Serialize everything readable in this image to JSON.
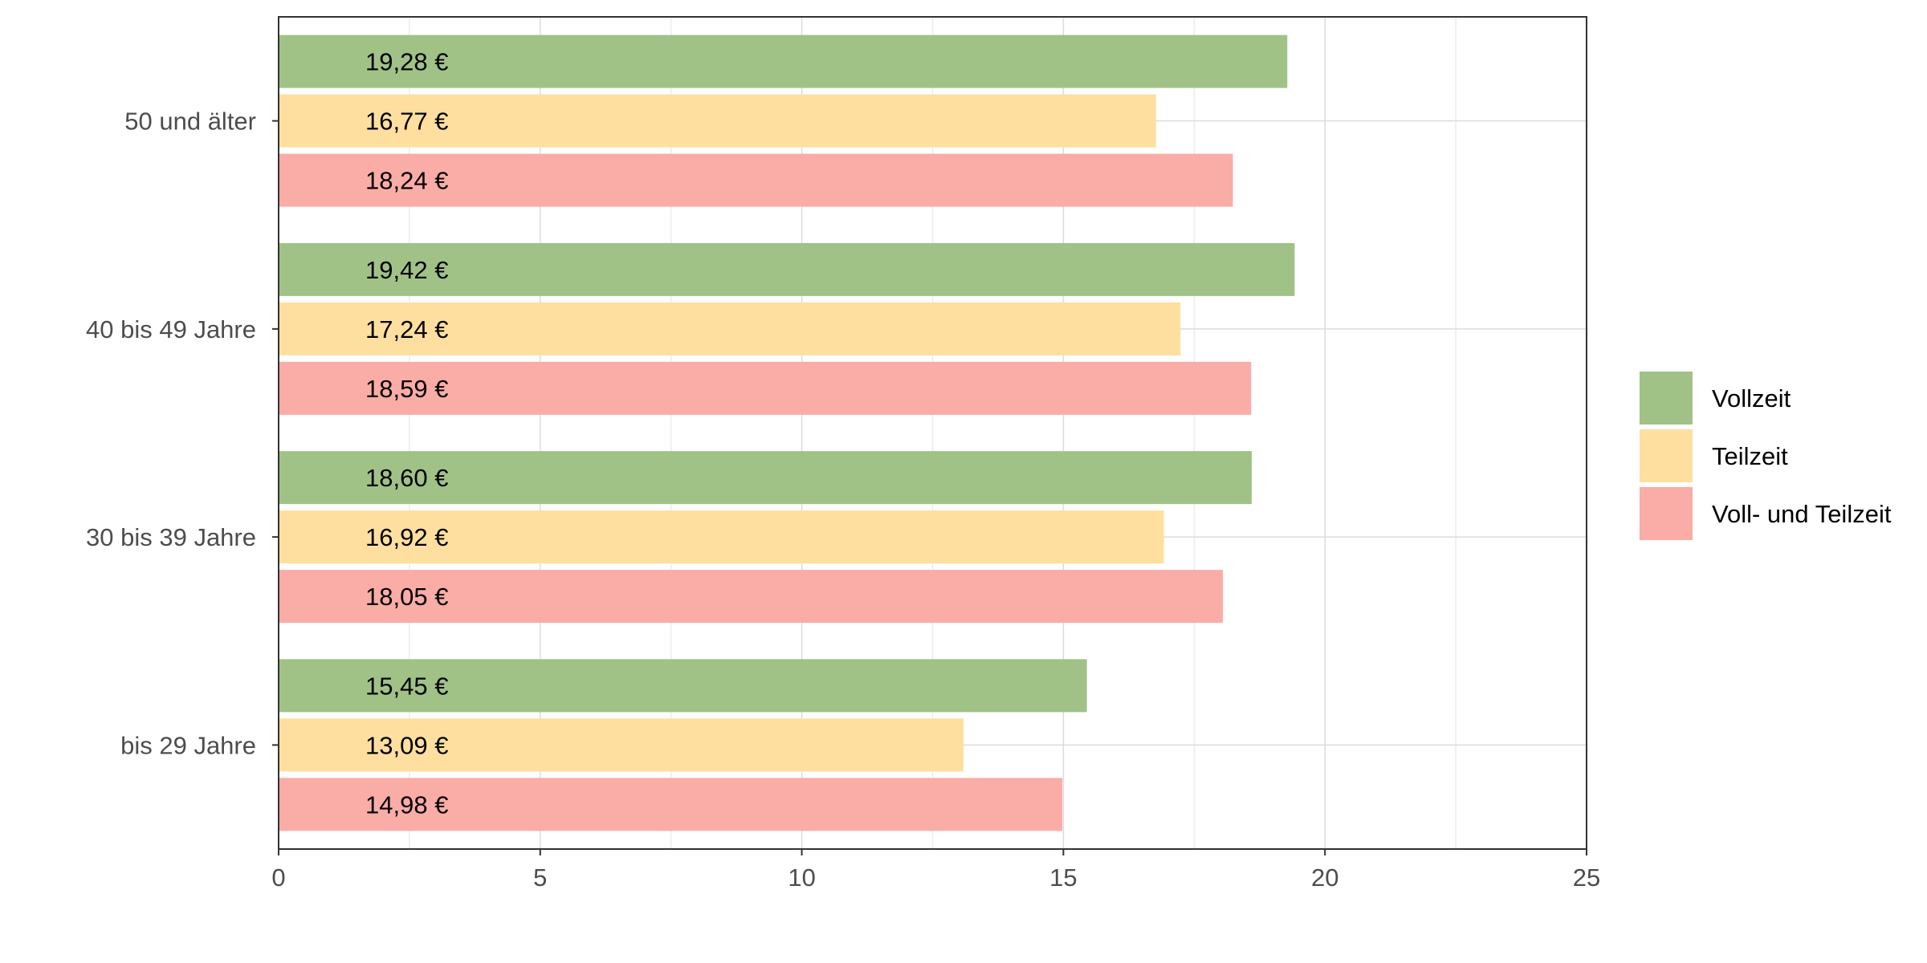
{
  "chart_data": {
    "type": "bar",
    "orientation": "horizontal",
    "categories": [
      "50 und älter",
      "40 bis 49 Jahre",
      "30 bis 39 Jahre",
      "bis 29 Jahre"
    ],
    "series": [
      {
        "name": "Vollzeit",
        "color": "#a1c287",
        "values": [
          19.28,
          19.42,
          18.6,
          15.45
        ],
        "labels": [
          "19,28 €",
          "19,42 €",
          "18,60 €",
          "15,45 €"
        ]
      },
      {
        "name": "Teilzeit",
        "color": "#fedf9f",
        "values": [
          16.77,
          17.24,
          16.92,
          13.09
        ],
        "labels": [
          "16,77 €",
          "17,24 €",
          "16,92 €",
          "13,09 €"
        ]
      },
      {
        "name": "Voll- und Teilzeit",
        "color": "#faaca7",
        "values": [
          18.24,
          18.59,
          18.05,
          14.98
        ],
        "labels": [
          "18,24 €",
          "18,59 €",
          "18,05 €",
          "14,98 €"
        ]
      }
    ],
    "x_ticks": [
      "0",
      "5",
      "10",
      "15",
      "20",
      "25"
    ],
    "xlim": [
      0,
      25
    ],
    "title": "",
    "xlabel": "",
    "ylabel": "",
    "grid": true,
    "legend_position": "right"
  }
}
